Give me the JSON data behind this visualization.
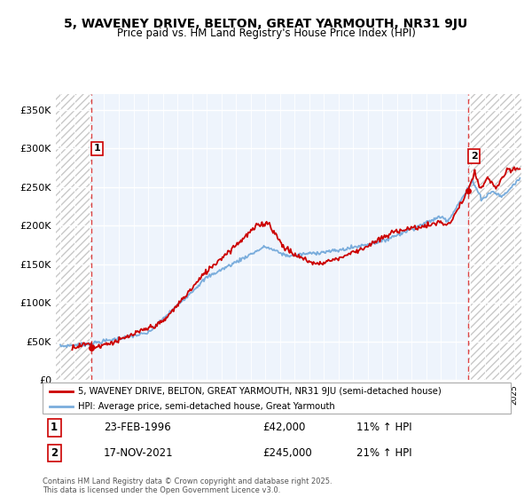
{
  "title_line1": "5, WAVENEY DRIVE, BELTON, GREAT YARMOUTH, NR31 9JU",
  "title_line2": "Price paid vs. HM Land Registry's House Price Index (HPI)",
  "ylim": [
    0,
    370000
  ],
  "yticks": [
    0,
    50000,
    100000,
    150000,
    200000,
    250000,
    300000,
    350000
  ],
  "ytick_labels": [
    "£0",
    "£50K",
    "£100K",
    "£150K",
    "£200K",
    "£250K",
    "£300K",
    "£350K"
  ],
  "xlim_start": 1993.7,
  "xlim_end": 2025.5,
  "sale1_year": 1996.15,
  "sale1_price": 42000,
  "sale1_label": "1",
  "sale2_year": 2021.88,
  "sale2_price": 245000,
  "sale2_label": "2",
  "hpi_color": "#7aaddc",
  "price_color": "#cc0000",
  "dashed_line_color": "#dd4444",
  "plot_bg_color": "#eef4fc",
  "hatch_color": "#c8c8c8",
  "legend_line1": "5, WAVENEY DRIVE, BELTON, GREAT YARMOUTH, NR31 9JU (semi-detached house)",
  "legend_line2": "HPI: Average price, semi-detached house, Great Yarmouth",
  "info1_label": "1",
  "info1_date": "23-FEB-1996",
  "info1_price": "£42,000",
  "info1_hpi": "11% ↑ HPI",
  "info2_label": "2",
  "info2_date": "17-NOV-2021",
  "info2_price": "£245,000",
  "info2_hpi": "21% ↑ HPI",
  "footer": "Contains HM Land Registry data © Crown copyright and database right 2025.\nThis data is licensed under the Open Government Licence v3.0."
}
